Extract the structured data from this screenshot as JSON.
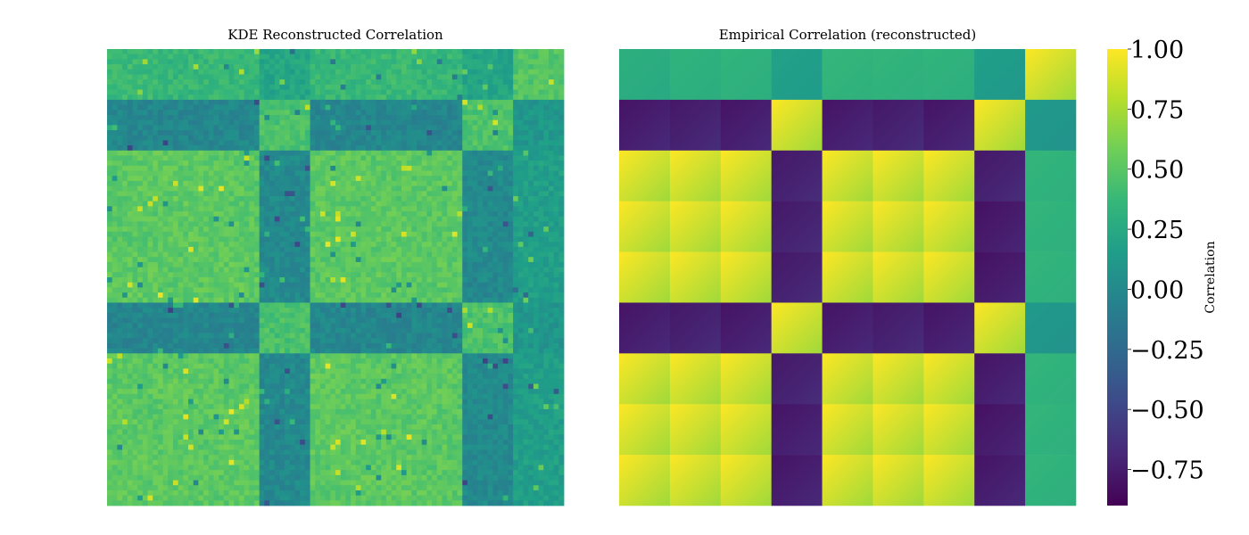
{
  "chart_data": [
    {
      "type": "heatmap",
      "title": "KDE Reconstructed Correlation",
      "block_grid": {
        "rows": 9,
        "cols": 9,
        "cell_size_per_block": 10,
        "block_values": [
          [
            0.38,
            0.36,
            0.37,
            0.22,
            0.37,
            0.38,
            0.36,
            0.21,
            0.48
          ],
          [
            -0.02,
            -0.03,
            -0.02,
            0.45,
            -0.03,
            -0.02,
            -0.03,
            0.46,
            0.1
          ],
          [
            0.52,
            0.52,
            0.51,
            0.0,
            0.52,
            0.51,
            0.52,
            0.0,
            0.16
          ],
          [
            0.5,
            0.52,
            0.51,
            0.0,
            0.51,
            0.52,
            0.5,
            0.0,
            0.16
          ],
          [
            0.52,
            0.51,
            0.52,
            0.0,
            0.51,
            0.52,
            0.51,
            0.0,
            0.16
          ],
          [
            -0.03,
            -0.02,
            -0.03,
            0.45,
            -0.02,
            -0.03,
            -0.02,
            0.46,
            0.1
          ],
          [
            0.51,
            0.52,
            0.51,
            0.0,
            0.52,
            0.51,
            0.52,
            0.0,
            0.16
          ],
          [
            0.51,
            0.5,
            0.52,
            0.0,
            0.52,
            0.51,
            0.51,
            0.0,
            0.16
          ],
          [
            0.52,
            0.51,
            0.51,
            0.0,
            0.51,
            0.52,
            0.51,
            0.0,
            0.16
          ]
        ]
      }
    },
    {
      "type": "heatmap",
      "title": "Empirical Correlation (reconstructed)",
      "block_grid": {
        "rows": 9,
        "cols": 9,
        "block_values": [
          [
            0.3,
            0.33,
            0.34,
            0.18,
            0.36,
            0.35,
            0.34,
            0.16,
            1.0
          ],
          [
            -0.8,
            -0.78,
            -0.8,
            1.0,
            -0.8,
            -0.78,
            -0.8,
            1.0,
            0.12
          ],
          [
            1.0,
            1.0,
            1.0,
            -0.78,
            1.0,
            1.0,
            1.0,
            -0.78,
            0.35
          ],
          [
            1.0,
            1.0,
            1.0,
            -0.78,
            1.0,
            1.0,
            1.0,
            -0.82,
            0.35
          ],
          [
            1.0,
            1.0,
            1.0,
            -0.78,
            1.0,
            1.0,
            1.0,
            -0.82,
            0.35
          ],
          [
            -0.8,
            -0.78,
            -0.8,
            1.0,
            -0.8,
            -0.78,
            -0.8,
            1.0,
            0.12
          ],
          [
            1.0,
            1.0,
            1.0,
            -0.78,
            1.0,
            1.0,
            1.0,
            -0.8,
            0.35
          ],
          [
            1.0,
            1.0,
            1.0,
            -0.8,
            1.0,
            1.0,
            1.0,
            -0.82,
            0.35
          ],
          [
            1.0,
            1.0,
            1.0,
            -0.8,
            1.0,
            1.0,
            1.0,
            -0.8,
            0.35
          ]
        ]
      }
    }
  ],
  "colorbar": {
    "label": "Correlation",
    "colormap": "viridis",
    "range": [
      -0.9,
      1.0
    ],
    "ticks": [
      {
        "value": 1.0,
        "label": "1.00"
      },
      {
        "value": 0.75,
        "label": "0.75"
      },
      {
        "value": 0.5,
        "label": "0.50"
      },
      {
        "value": 0.25,
        "label": "0.25"
      },
      {
        "value": 0.0,
        "label": "0.00"
      },
      {
        "value": -0.25,
        "label": "−0.25"
      },
      {
        "value": -0.5,
        "label": "−0.50"
      },
      {
        "value": -0.75,
        "label": "−0.75"
      }
    ]
  }
}
